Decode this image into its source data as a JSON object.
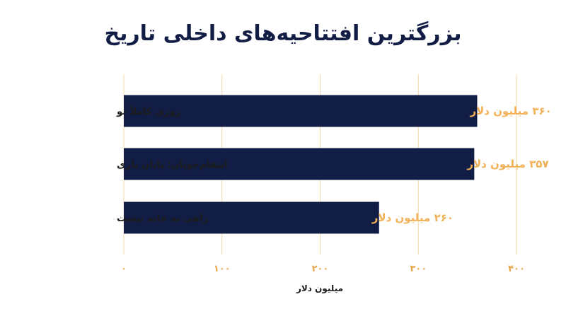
{
  "chart_data": {
    "type": "bar",
    "orientation": "horizontal",
    "title": "بزرگترین افتتاحیه‌های داخلی تاریخ",
    "categories": [
      "روزی کاملاً نو",
      "انتقام‌جویان: پایان بازی",
      "راهی به خانه نیست"
    ],
    "values": [
      360,
      357,
      260
    ],
    "value_labels": [
      "۳۶۰ میلیون دلار",
      "۳۵۷ میلیون دلار",
      "۲۶۰ میلیون دلار"
    ],
    "xlabel": "میلیون دلار",
    "ylabel": "",
    "xlim": [
      0,
      400
    ],
    "ticks": [
      0,
      100,
      200,
      300,
      400
    ],
    "tick_labels": [
      "۰",
      "۱۰۰",
      "۲۰۰",
      "۳۰۰",
      "۴۰۰"
    ],
    "grid": "vertical",
    "legend": "none",
    "colors": {
      "bar": "#121d45",
      "value_label": "#f2b156",
      "gridline": "#f0d9a8",
      "tick_label": "#e9a74c",
      "title": "#121d45",
      "text": "#1b1b1b"
    }
  }
}
